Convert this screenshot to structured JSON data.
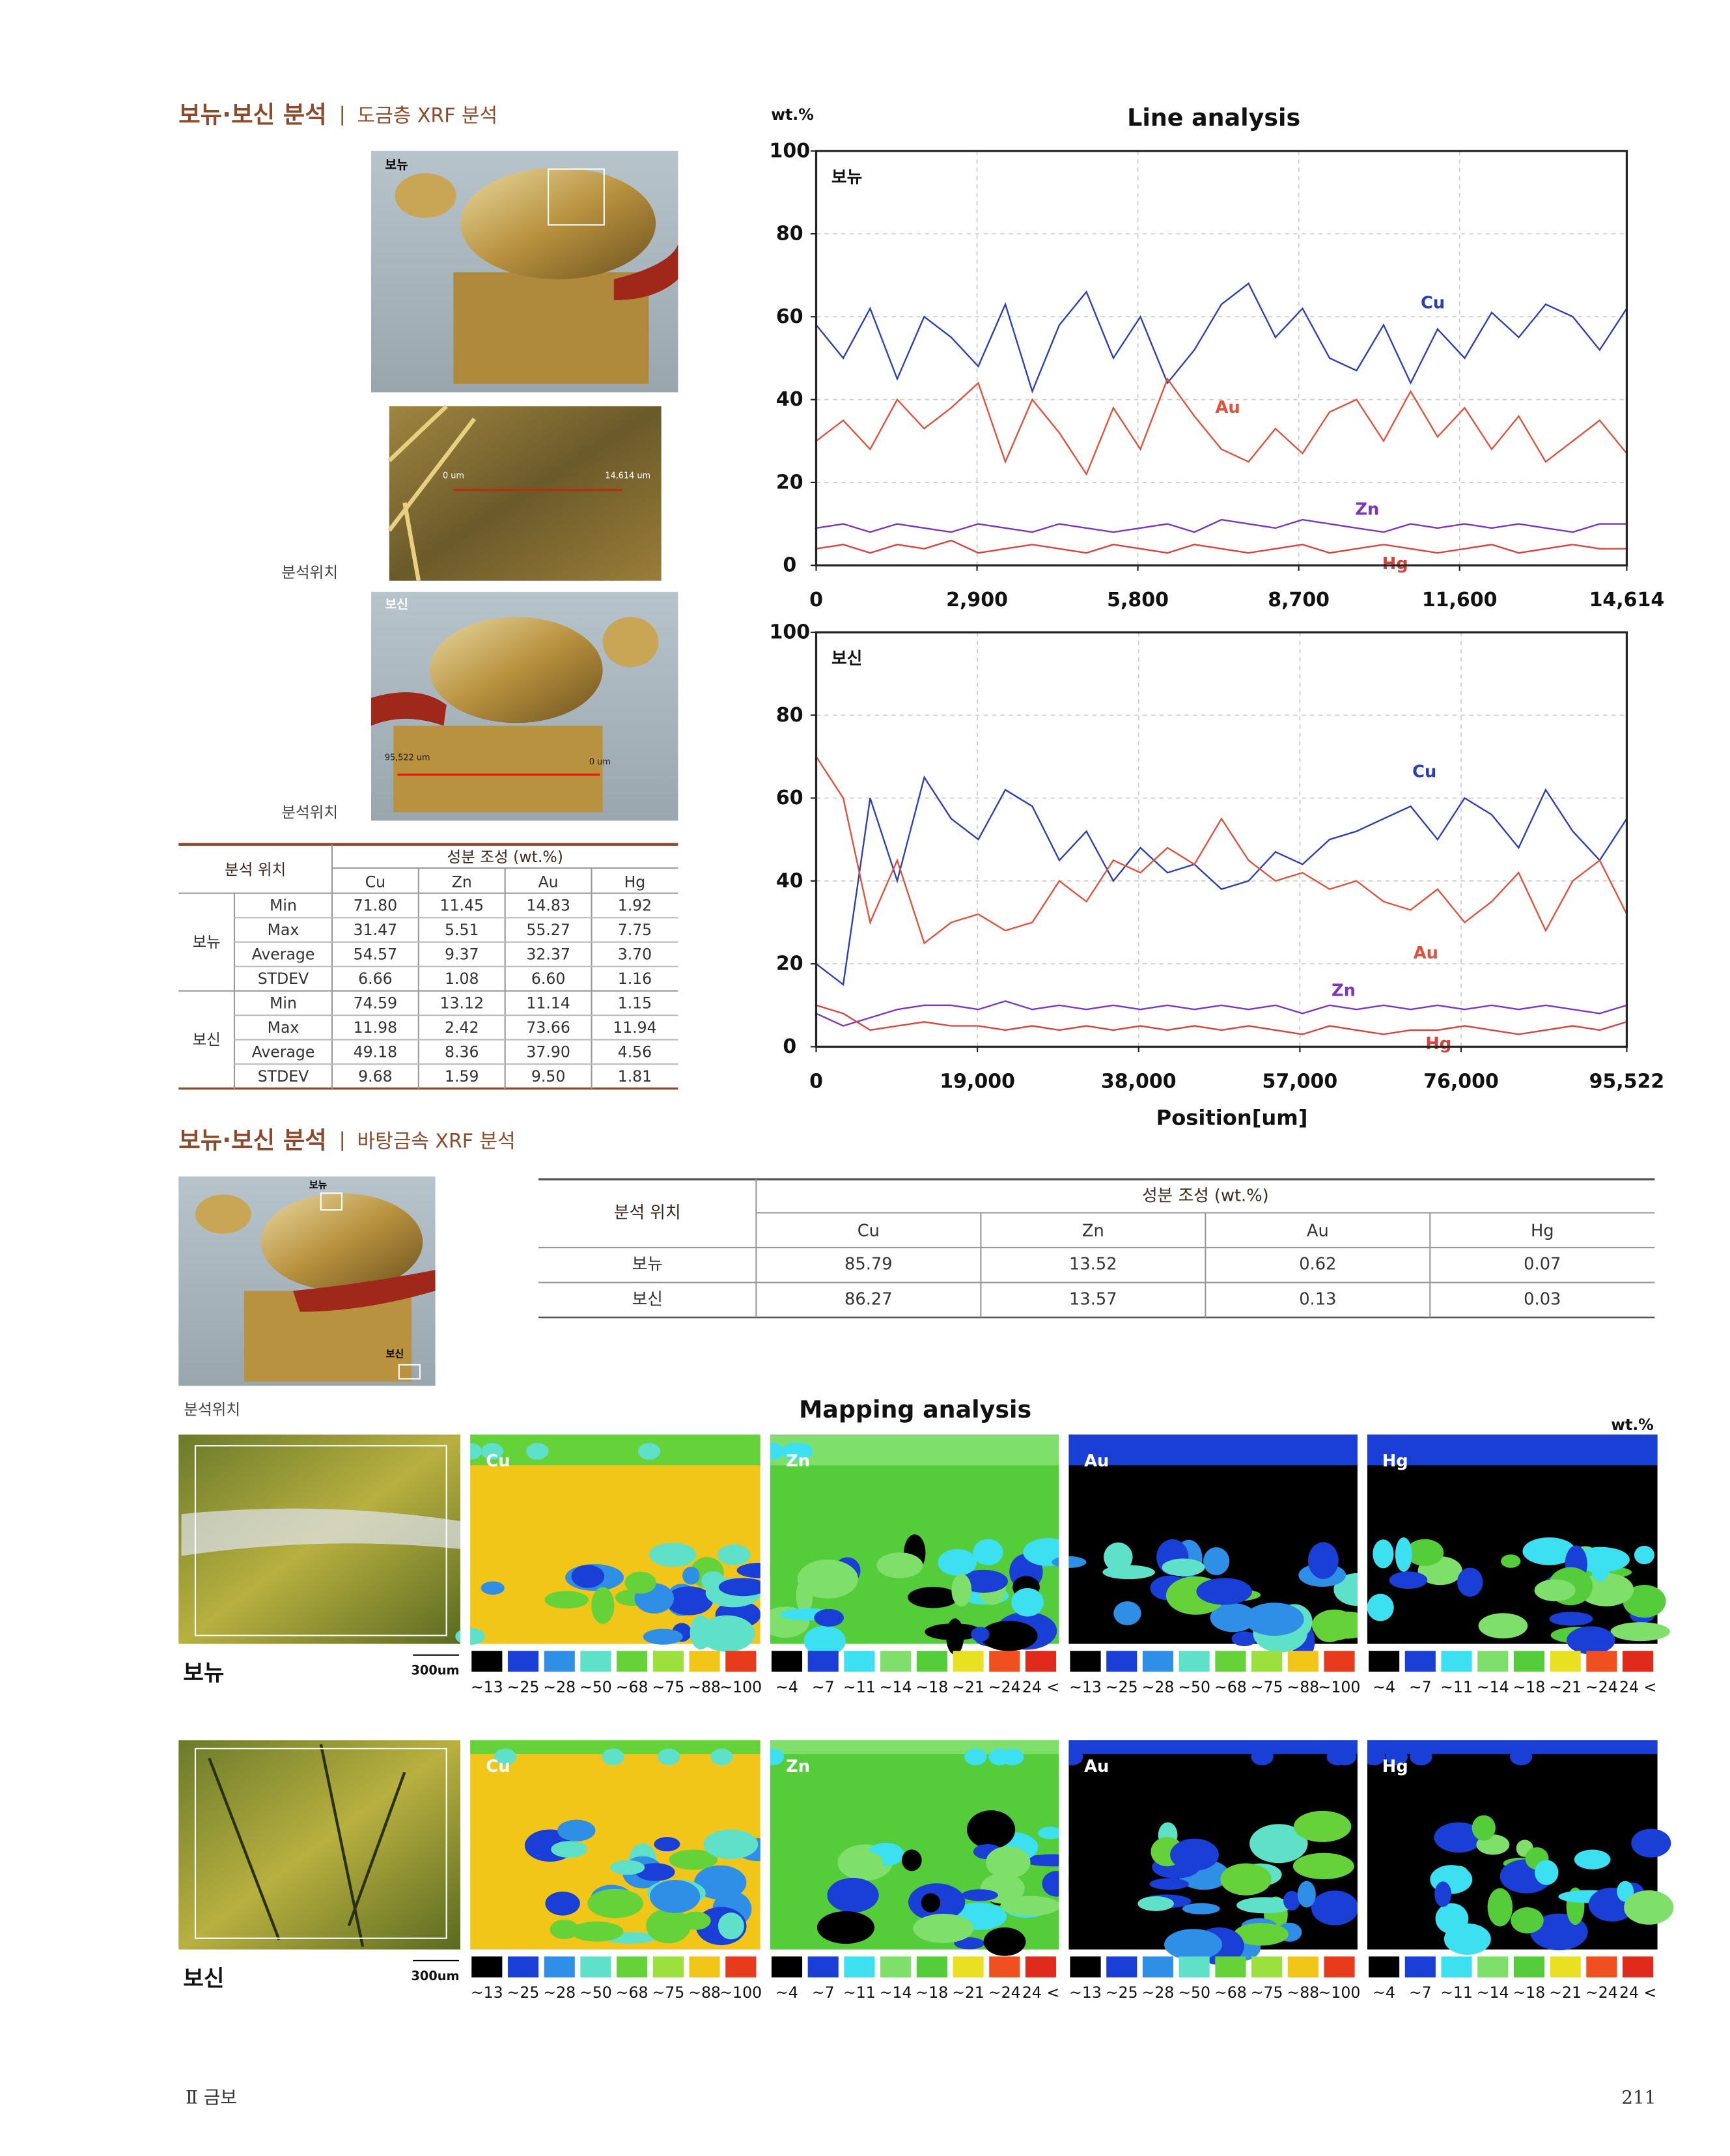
{
  "section1": {
    "title": "보뉴·보신 분석",
    "subtitle": "도금층 XRF 분석",
    "photo_labels": [
      "보뉴",
      "보신"
    ],
    "location_labels": [
      "분석위치",
      "분석위치"
    ],
    "scale_labels": [
      "0 um",
      "14,614 um",
      "95,522 um",
      "0 um"
    ],
    "table": {
      "header_location": "분석 위치",
      "header_composition": "성분 조성 (wt.%)",
      "columns": [
        "Cu",
        "Zn",
        "Au",
        "Hg"
      ],
      "groups": [
        {
          "name": "보뉴",
          "rows": [
            {
              "stat": "Min",
              "values": [
                "71.80",
                "11.45",
                "14.83",
                "1.92"
              ]
            },
            {
              "stat": "Max",
              "values": [
                "31.47",
                "5.51",
                "55.27",
                "7.75"
              ]
            },
            {
              "stat": "Average",
              "values": [
                "54.57",
                "9.37",
                "32.37",
                "3.70"
              ]
            },
            {
              "stat": "STDEV",
              "values": [
                "6.66",
                "1.08",
                "6.60",
                "1.16"
              ]
            }
          ]
        },
        {
          "name": "보신",
          "rows": [
            {
              "stat": "Min",
              "values": [
                "74.59",
                "13.12",
                "11.14",
                "1.15"
              ]
            },
            {
              "stat": "Max",
              "values": [
                "11.98",
                "2.42",
                "73.66",
                "11.94"
              ]
            },
            {
              "stat": "Average",
              "values": [
                "49.18",
                "8.36",
                "37.90",
                "4.56"
              ]
            },
            {
              "stat": "STDEV",
              "values": [
                "9.68",
                "1.59",
                "9.50",
                "1.81"
              ]
            }
          ]
        }
      ]
    }
  },
  "line_analysis": {
    "title": "Line analysis",
    "y_label": "wt.%",
    "x_label": "Position[um]"
  },
  "chart_data": [
    {
      "type": "line",
      "label": "보뉴",
      "grid": true,
      "xlim": [
        0,
        14614
      ],
      "ylim": [
        0,
        100
      ],
      "xticks": [
        0,
        {
          "value": 2900,
          "label": "2,900"
        },
        {
          "value": 5800,
          "label": "5,800"
        },
        {
          "value": 8700,
          "label": "8,700"
        },
        {
          "value": 11600,
          "label": "11,600"
        },
        {
          "value": 14614,
          "label": "14,614"
        }
      ],
      "yticks": [
        0,
        20,
        40,
        60,
        80,
        100
      ],
      "x": [
        0,
        487,
        974,
        1461,
        1948,
        2436,
        2923,
        3410,
        3897,
        4384,
        4871,
        5358,
        5846,
        6333,
        6820,
        7307,
        7794,
        8281,
        8768,
        9256,
        9743,
        10230,
        10717,
        11204,
        11691,
        12178,
        12666,
        13153,
        13640,
        14127,
        14614
      ],
      "series": [
        {
          "name": "Cu",
          "color": "#2b3fb5",
          "values": [
            58,
            50,
            62,
            45,
            60,
            55,
            48,
            63,
            42,
            58,
            66,
            50,
            60,
            44,
            52,
            63,
            68,
            55,
            62,
            50,
            47,
            58,
            44,
            57,
            50,
            61,
            55,
            63,
            60,
            52,
            62
          ]
        },
        {
          "name": "Au",
          "color": "#e0503a",
          "values": [
            30,
            35,
            28,
            40,
            33,
            38,
            44,
            25,
            40,
            32,
            22,
            38,
            28,
            45,
            36,
            28,
            25,
            33,
            27,
            37,
            40,
            30,
            42,
            31,
            38,
            28,
            36,
            25,
            30,
            35,
            27
          ]
        },
        {
          "name": "Zn",
          "color": "#7b35c0",
          "values": [
            9,
            10,
            8,
            10,
            9,
            8,
            10,
            9,
            8,
            10,
            9,
            8,
            9,
            10,
            8,
            11,
            10,
            9,
            11,
            10,
            9,
            8,
            10,
            9,
            10,
            9,
            10,
            9,
            8,
            10,
            10
          ]
        },
        {
          "name": "Hg",
          "color": "#d9423a",
          "values": [
            4,
            5,
            3,
            5,
            4,
            6,
            3,
            4,
            5,
            4,
            3,
            5,
            4,
            3,
            5,
            4,
            3,
            4,
            5,
            3,
            4,
            5,
            4,
            3,
            4,
            5,
            3,
            4,
            5,
            4,
            4
          ]
        }
      ]
    },
    {
      "type": "line",
      "label": "보신",
      "grid": true,
      "xlim": [
        0,
        95522
      ],
      "ylim": [
        0,
        100
      ],
      "xticks": [
        0,
        {
          "value": 19000,
          "label": "19,000"
        },
        {
          "value": 38000,
          "label": "38,000"
        },
        {
          "value": 57000,
          "label": "57,000"
        },
        {
          "value": 76000,
          "label": "76,000"
        },
        {
          "value": 95522,
          "label": "95,522"
        }
      ],
      "yticks": [
        0,
        20,
        40,
        60,
        80,
        100
      ],
      "x": [
        0,
        3184,
        6368,
        9552,
        12736,
        15920,
        19104,
        22289,
        25473,
        28657,
        31841,
        35025,
        38209,
        41393,
        44577,
        47761,
        50945,
        54129,
        57313,
        60497,
        63681,
        66865,
        70049,
        73233,
        76417,
        79601,
        82785,
        85969,
        89153,
        92337,
        95522
      ],
      "series": [
        {
          "name": "Cu",
          "color": "#2b3fb5",
          "values": [
            20,
            15,
            60,
            40,
            65,
            55,
            50,
            62,
            58,
            45,
            52,
            40,
            48,
            42,
            44,
            38,
            40,
            47,
            44,
            50,
            52,
            55,
            58,
            50,
            60,
            56,
            48,
            62,
            52,
            45,
            55
          ]
        },
        {
          "name": "Au",
          "color": "#e0503a",
          "values": [
            70,
            60,
            30,
            45,
            25,
            30,
            32,
            28,
            30,
            40,
            35,
            45,
            42,
            48,
            44,
            55,
            45,
            40,
            42,
            38,
            40,
            35,
            33,
            38,
            30,
            35,
            42,
            28,
            40,
            45,
            32
          ]
        },
        {
          "name": "Zn",
          "color": "#7b35c0",
          "values": [
            8,
            5,
            7,
            9,
            10,
            10,
            9,
            11,
            9,
            10,
            9,
            10,
            9,
            10,
            9,
            10,
            9,
            10,
            8,
            10,
            9,
            10,
            9,
            10,
            9,
            10,
            9,
            10,
            9,
            8,
            10
          ]
        },
        {
          "name": "Hg",
          "color": "#d9423a",
          "values": [
            10,
            8,
            4,
            5,
            6,
            5,
            5,
            4,
            5,
            4,
            5,
            4,
            5,
            4,
            5,
            4,
            5,
            4,
            3,
            5,
            4,
            3,
            4,
            4,
            5,
            4,
            3,
            4,
            5,
            4,
            6
          ]
        }
      ]
    }
  ],
  "section2": {
    "title": "보뉴·보신 분석",
    "subtitle": "바탕금속 XRF 분석",
    "photo_labels": [
      "보뉴",
      "보신"
    ],
    "location_label": "분석위치",
    "table": {
      "header_location": "분석 위치",
      "header_composition": "성분 조성 (wt.%)",
      "columns": [
        "Cu",
        "Zn",
        "Au",
        "Hg"
      ],
      "rows": [
        {
          "name": "보뉴",
          "values": [
            "85.79",
            "13.52",
            "0.62",
            "0.07"
          ]
        },
        {
          "name": "보신",
          "values": [
            "86.27",
            "13.57",
            "0.13",
            "0.03"
          ]
        }
      ]
    }
  },
  "mapping": {
    "title": "Mapping analysis",
    "unit": "wt.%",
    "rows": [
      {
        "name": "보뉴",
        "scale": "300um"
      },
      {
        "name": "보신",
        "scale": "300um"
      }
    ],
    "maps": [
      {
        "element": "Cu",
        "legend": [
          "~13",
          "~25",
          "~28",
          "~50",
          "~68",
          "~75",
          "~88",
          "~100"
        ],
        "colors": [
          "#000000",
          "#1a3fd6",
          "#2f8fe6",
          "#5fe0c8",
          "#66d23a",
          "#9be03c",
          "#f2c618",
          "#e83a1c"
        ]
      },
      {
        "element": "Zn",
        "legend": [
          "~4",
          "~7",
          "~11",
          "~14",
          "~18",
          "~21",
          "~24",
          "24 <"
        ],
        "colors": [
          "#000000",
          "#1a3fd6",
          "#3ce0f0",
          "#7ee06a",
          "#55cc3a",
          "#e8e020",
          "#f05020",
          "#e02a1c"
        ]
      },
      {
        "element": "Au",
        "legend": [
          "~13",
          "~25",
          "~28",
          "~50",
          "~68",
          "~75",
          "~88",
          "~100"
        ],
        "colors": [
          "#000000",
          "#1a3fd6",
          "#2f8fe6",
          "#5fe0c8",
          "#66d23a",
          "#9be03c",
          "#f2c618",
          "#e83a1c"
        ]
      },
      {
        "element": "Hg",
        "legend": [
          "~4",
          "~7",
          "~11",
          "~14",
          "~18",
          "~21",
          "~24",
          "24 <"
        ],
        "colors": [
          "#000000",
          "#1a3fd6",
          "#3ce0f0",
          "#7ee06a",
          "#55cc3a",
          "#e8e020",
          "#f05020",
          "#e02a1c"
        ]
      }
    ]
  },
  "footer": {
    "section": "Ⅱ 금보",
    "page": "211"
  }
}
